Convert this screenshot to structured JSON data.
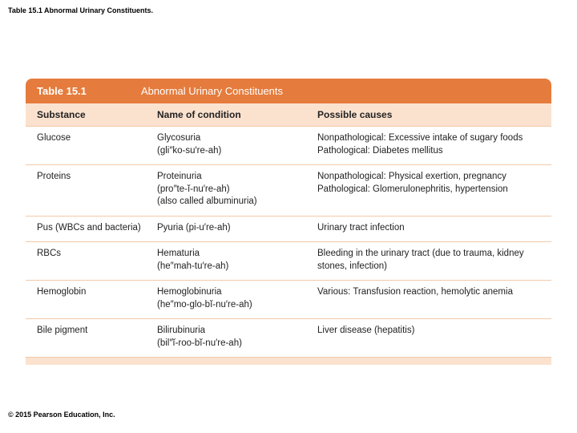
{
  "caption": "Table 15.1 Abnormal Urinary Constituents.",
  "table": {
    "number": "Table 15.1",
    "title": "Abnormal Urinary Constituents",
    "headers": {
      "c1": "Substance",
      "c2": "Name of condition",
      "c3": "Possible causes"
    },
    "rows": [
      {
        "c1": "Glucose",
        "c2": "Glycosuria\n(gli″ko-su′re-ah)",
        "c3": "Nonpathological: Excessive intake of sugary foods\nPathological: Diabetes mellitus"
      },
      {
        "c1": "Proteins",
        "c2": "Proteinuria\n(pro″te-ĭ-nu′re-ah)\n(also called albuminuria)",
        "c3": "Nonpathological: Physical exertion, pregnancy\nPathological: Glomerulonephritis, hypertension"
      },
      {
        "c1": "Pus (WBCs and bacteria)",
        "c2": "Pyuria (pi-u′re-ah)",
        "c3": "Urinary tract infection"
      },
      {
        "c1": "RBCs",
        "c2": "Hematuria\n(he″mah-tu′re-ah)",
        "c3": "Bleeding in the urinary tract (due to trauma, kidney stones, infection)"
      },
      {
        "c1": "Hemoglobin",
        "c2": "Hemoglobinuria\n(he″mo-glo-bĭ-nu′re-ah)",
        "c3": "Various: Transfusion reaction, hemolytic anemia"
      },
      {
        "c1": "Bile pigment",
        "c2": "Bilirubinuria\n(bil″ĭ-roo-bĭ-nu′re-ah)",
        "c3": "Liver disease (hepatitis)"
      }
    ]
  },
  "copyright": "© 2015 Pearson Education, Inc.",
  "colors": {
    "titlebar_bg": "#e57b3c",
    "header_bg": "#fbe2cf",
    "row_border": "#f3c9a8"
  }
}
